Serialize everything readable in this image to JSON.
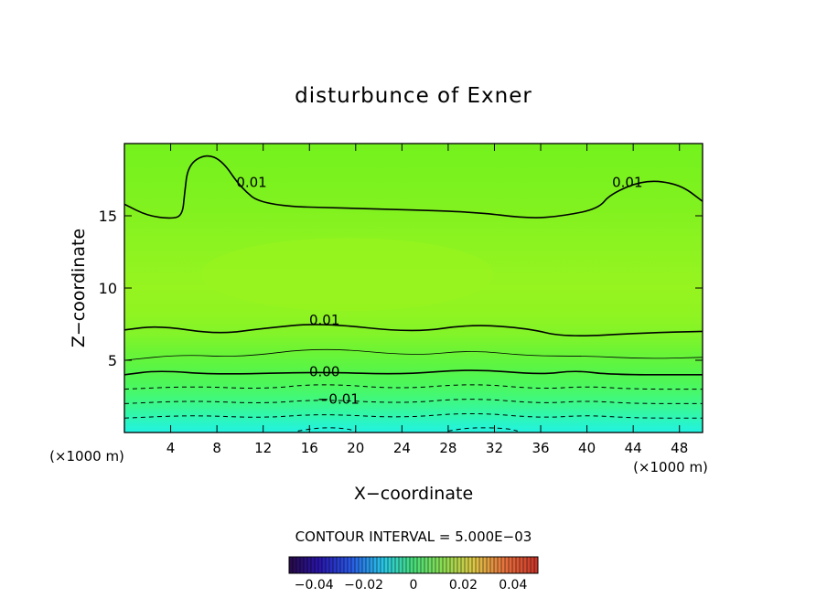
{
  "chart_data": {
    "type": "heatmap",
    "title": "disturbunce of Exner",
    "xlabel": "X−coordinate",
    "ylabel": "Z−coordinate",
    "x_unit_label": "(×1000 m)",
    "y_unit_label": "(×1000 m)",
    "xlim": [
      0,
      50
    ],
    "ylim": [
      0,
      20
    ],
    "x_ticks": [
      4,
      8,
      12,
      16,
      20,
      24,
      28,
      32,
      36,
      40,
      44,
      48
    ],
    "y_ticks": [
      5,
      10,
      15
    ],
    "contour_interval_text": "CONTOUR INTERVAL = 5.000E−03",
    "colorbar": {
      "range": [
        -0.05,
        0.05
      ],
      "tick_values": [
        -0.04,
        -0.02,
        0,
        0.02,
        0.04
      ],
      "tick_labels": [
        "−0.04",
        "−0.02",
        "0",
        "0.02",
        "0.04"
      ]
    },
    "contours": [
      {
        "level": 0.01,
        "label": "0.01",
        "style": "solid",
        "points": [
          [
            0,
            15.8
          ],
          [
            2,
            15.0
          ],
          [
            4,
            14.8
          ],
          [
            5,
            15.0
          ],
          [
            5.2,
            16.5
          ],
          [
            5.5,
            18.5
          ],
          [
            7,
            19.3
          ],
          [
            8.5,
            18.8
          ],
          [
            10,
            17.0
          ],
          [
            12,
            15.7
          ],
          [
            20,
            15.5
          ],
          [
            30,
            15.3
          ],
          [
            35,
            14.8
          ],
          [
            38,
            15.0
          ],
          [
            41,
            15.5
          ],
          [
            42,
            16.5
          ],
          [
            45,
            17.5
          ],
          [
            48,
            17.2
          ],
          [
            50,
            16.0
          ]
        ],
        "label_positions": [
          [
            11,
            17.3
          ],
          [
            43.5,
            17.3
          ]
        ]
      },
      {
        "level": 0.01,
        "label": "0.01",
        "style": "solid",
        "points": [
          [
            0,
            7.1
          ],
          [
            3,
            7.4
          ],
          [
            8,
            6.8
          ],
          [
            12,
            7.2
          ],
          [
            17,
            7.6
          ],
          [
            25,
            6.9
          ],
          [
            30,
            7.5
          ],
          [
            35,
            7.2
          ],
          [
            38,
            6.6
          ],
          [
            45,
            6.9
          ],
          [
            50,
            7.0
          ]
        ],
        "label_positions": [
          [
            17.3,
            7.8
          ]
        ]
      },
      {
        "level": 0.005,
        "label": "",
        "style": "thin",
        "points": [
          [
            0,
            5.0
          ],
          [
            5,
            5.4
          ],
          [
            10,
            5.2
          ],
          [
            17,
            5.9
          ],
          [
            25,
            5.3
          ],
          [
            30,
            5.7
          ],
          [
            35,
            5.3
          ],
          [
            40,
            5.3
          ],
          [
            45,
            5.1
          ],
          [
            50,
            5.2
          ]
        ],
        "label_positions": []
      },
      {
        "level": 0.0,
        "label": "0.00",
        "style": "solid",
        "points": [
          [
            0,
            4.0
          ],
          [
            3,
            4.3
          ],
          [
            8,
            4.0
          ],
          [
            17,
            4.2
          ],
          [
            24,
            4.0
          ],
          [
            30,
            4.4
          ],
          [
            36,
            4.0
          ],
          [
            39,
            4.3
          ],
          [
            42,
            4.0
          ],
          [
            50,
            4.0
          ]
        ],
        "label_positions": [
          [
            17.3,
            4.2
          ]
        ]
      },
      {
        "level": -0.005,
        "label": "",
        "style": "dashed",
        "points": [
          [
            0,
            3.0
          ],
          [
            6,
            3.2
          ],
          [
            12,
            3.0
          ],
          [
            17,
            3.4
          ],
          [
            24,
            3.0
          ],
          [
            30,
            3.4
          ],
          [
            36,
            3.0
          ],
          [
            40,
            3.2
          ],
          [
            44,
            3.0
          ],
          [
            50,
            3.0
          ]
        ],
        "label_positions": []
      },
      {
        "level": -0.01,
        "label": "−0.01",
        "style": "dashed",
        "points": [
          [
            0,
            2.0
          ],
          [
            6,
            2.2
          ],
          [
            12,
            2.0
          ],
          [
            17,
            2.3
          ],
          [
            24,
            2.0
          ],
          [
            30,
            2.4
          ],
          [
            36,
            2.0
          ],
          [
            40,
            2.2
          ],
          [
            44,
            2.0
          ],
          [
            50,
            2.0
          ]
        ],
        "label_positions": [
          [
            18.5,
            2.3
          ]
        ]
      },
      {
        "level": -0.015,
        "label": "",
        "style": "dashed",
        "points": [
          [
            0,
            1.0
          ],
          [
            6,
            1.2
          ],
          [
            12,
            1.0
          ],
          [
            17,
            1.3
          ],
          [
            24,
            1.0
          ],
          [
            30,
            1.4
          ],
          [
            36,
            1.0
          ],
          [
            40,
            1.2
          ],
          [
            44,
            1.0
          ],
          [
            50,
            1.0
          ]
        ],
        "label_positions": []
      },
      {
        "level": -0.02,
        "label": "",
        "style": "dashed",
        "points": [
          [
            15,
            0.1
          ],
          [
            17,
            0.35
          ],
          [
            19,
            0.3
          ],
          [
            20,
            0.1
          ]
        ],
        "label_positions": []
      },
      {
        "level": -0.02,
        "label": "",
        "style": "dashed",
        "points": [
          [
            28,
            0.1
          ],
          [
            30,
            0.35
          ],
          [
            33,
            0.3
          ],
          [
            34,
            0.1
          ]
        ],
        "label_positions": []
      }
    ],
    "color_bands": [
      {
        "z": 0.0,
        "color": "#22f2e2"
      },
      {
        "z": 0.7,
        "color": "#2af5c6"
      },
      {
        "z": 1.4,
        "color": "#33f7a4"
      },
      {
        "z": 2.1,
        "color": "#3ef887"
      },
      {
        "z": 2.8,
        "color": "#47f86b"
      },
      {
        "z": 3.5,
        "color": "#4ef757"
      },
      {
        "z": 4.2,
        "color": "#56f54a"
      },
      {
        "z": 5.0,
        "color": "#62f53d"
      },
      {
        "z": 5.8,
        "color": "#70f432"
      },
      {
        "z": 6.8,
        "color": "#82f429"
      },
      {
        "z": 8.0,
        "color": "#8ef422"
      },
      {
        "z": 10.0,
        "color": "#96f41f"
      },
      {
        "z": 13.0,
        "color": "#8cf320"
      },
      {
        "z": 16.0,
        "color": "#7ff21f"
      },
      {
        "z": 20.0,
        "color": "#74f21d"
      }
    ]
  }
}
